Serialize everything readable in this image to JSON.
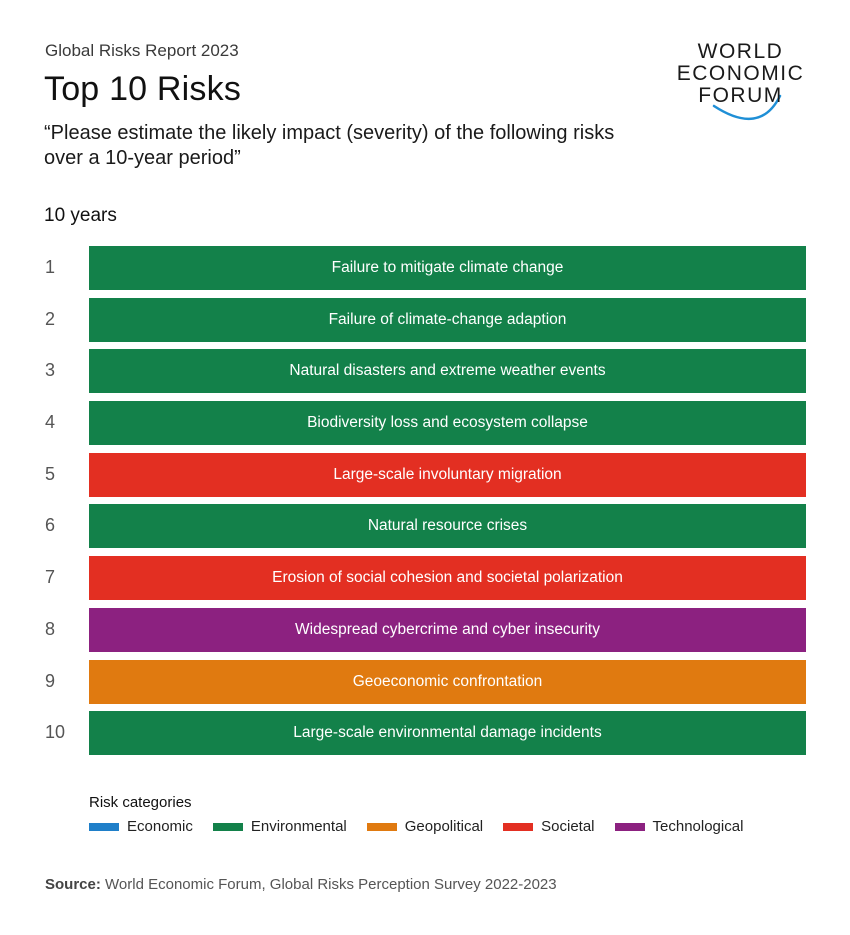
{
  "header": {
    "report_label": "Global Risks Report 2023",
    "title": "Top 10 Risks",
    "question": "“Please estimate the likely impact (severity) of the following risks over a 10-year period”"
  },
  "logo": {
    "line1": "WORLD",
    "line2": "ECONOMIC",
    "line3": "FORUM",
    "arc_color": "#1f8fd6"
  },
  "chart_data": {
    "type": "table",
    "period_label": "10 years",
    "risks": [
      {
        "rank": "1",
        "label": "Failure to mitigate climate change",
        "category": "Environmental"
      },
      {
        "rank": "2",
        "label": "Failure of climate-change adaption",
        "category": "Environmental"
      },
      {
        "rank": "3",
        "label": "Natural disasters and extreme weather events",
        "category": "Environmental"
      },
      {
        "rank": "4",
        "label": "Biodiversity loss and ecosystem collapse",
        "category": "Environmental"
      },
      {
        "rank": "5",
        "label": "Large-scale involuntary migration",
        "category": "Societal"
      },
      {
        "rank": "6",
        "label": "Natural resource crises",
        "category": "Environmental"
      },
      {
        "rank": "7",
        "label": "Erosion of social cohesion and societal polarization",
        "category": "Societal"
      },
      {
        "rank": "8",
        "label": "Widespread cybercrime and cyber insecurity",
        "category": "Technological"
      },
      {
        "rank": "9",
        "label": "Geoeconomic confrontation",
        "category": "Geopolitical"
      },
      {
        "rank": "10",
        "label": "Large-scale environmental damage incidents",
        "category": "Environmental"
      }
    ],
    "legend_title": "Risk categories",
    "categories": [
      {
        "name": "Economic",
        "color": "#1f7fc9"
      },
      {
        "name": "Environmental",
        "color": "#13814a"
      },
      {
        "name": "Geopolitical",
        "color": "#e07a10"
      },
      {
        "name": "Societal",
        "color": "#e32f22"
      },
      {
        "name": "Technological",
        "color": "#8c2180"
      }
    ]
  },
  "footer": {
    "source_label": "Source:",
    "source_text": " World Economic Forum, Global Risks Perception Survey 2022-2023"
  }
}
